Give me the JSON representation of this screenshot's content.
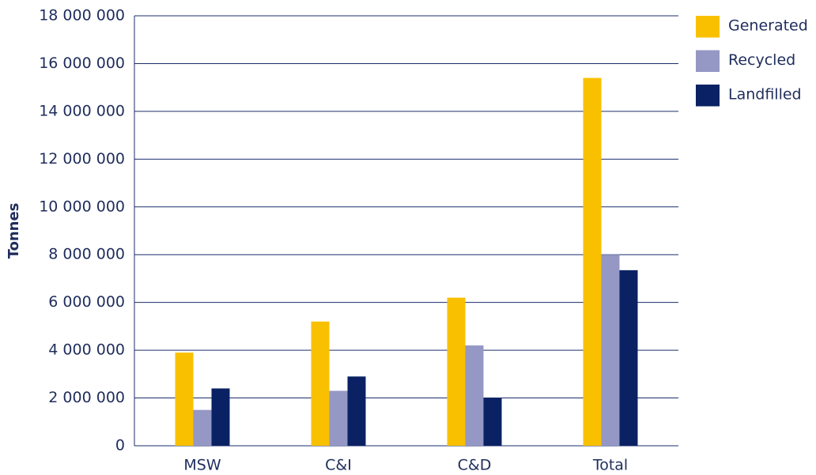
{
  "chart_data": {
    "type": "bar",
    "y_label": "Tonnes",
    "categories": [
      "MSW",
      "C&I",
      "C&D",
      "Total"
    ],
    "series": [
      {
        "name": "Generated",
        "color": "#f9c000",
        "values": [
          3900000,
          5200000,
          6200000,
          15400000
        ]
      },
      {
        "name": "Recycled",
        "color": "#9597c4",
        "values": [
          1500000,
          2300000,
          4200000,
          8000000
        ]
      },
      {
        "name": "Landfilled",
        "color": "#0a2263",
        "values": [
          2400000,
          2900000,
          2000000,
          7350000
        ]
      }
    ],
    "ylim": [
      0,
      18000000
    ],
    "yticks": [
      0,
      {
        "value": 2000000,
        "label": "2 000 000"
      },
      {
        "value": 4000000,
        "label": "4 000 000"
      },
      {
        "value": 6000000,
        "label": "6 000 000"
      },
      {
        "value": 8000000,
        "label": "8 000 000"
      },
      {
        "value": 10000000,
        "label": "10 000 000"
      },
      {
        "value": 12000000,
        "label": "12 000 000"
      },
      {
        "value": 14000000,
        "label": "14 000 000"
      },
      {
        "value": 16000000,
        "label": "16 000 000"
      },
      {
        "value": 18000000,
        "label": "18 000 000"
      }
    ],
    "grid": true,
    "legend": "right"
  }
}
